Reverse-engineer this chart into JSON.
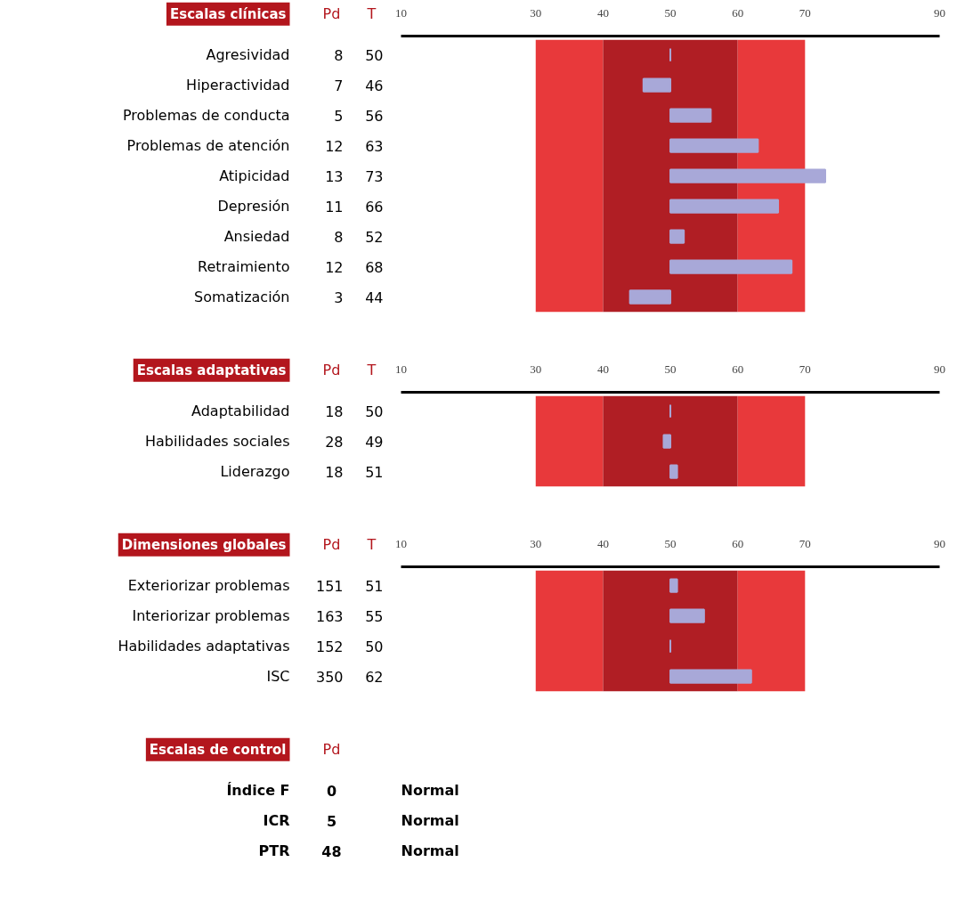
{
  "chart_data": [
    {
      "type": "bar",
      "title": "Escalas clínicas",
      "orientation": "horizontal",
      "categories": [
        "Agresividad",
        "Hiperactividad",
        "Problemas de conducta",
        "Problemas de atención",
        "Atipicidad",
        "Depresión",
        "Ansiedad",
        "Retraimiento",
        "Somatización"
      ],
      "base": [
        50,
        50,
        50,
        50,
        50,
        50,
        50,
        50,
        50
      ],
      "values": [
        0,
        -4,
        6,
        13,
        23,
        16,
        2,
        18,
        -6
      ],
      "color": "#a8a8d8",
      "xlim": [
        10,
        90
      ],
      "xticks": [
        10,
        30,
        40,
        50,
        60,
        70,
        90
      ],
      "bands": [
        {
          "axis": "x",
          "from": 30,
          "to": 40,
          "color": "#e8393b"
        },
        {
          "axis": "x",
          "from": 40,
          "to": 60,
          "color": "#b01e24"
        },
        {
          "axis": "x",
          "from": 60,
          "to": 70,
          "color": "#e8393b"
        }
      ],
      "annotations": [
        "Pd",
        "T",
        "8",
        "50",
        "7",
        "46",
        "5",
        "56",
        "12",
        "63",
        "13",
        "73",
        "11",
        "66",
        "8",
        "52",
        "12",
        "68",
        "3",
        "44"
      ]
    },
    {
      "type": "bar",
      "title": "Escalas adaptativas",
      "orientation": "horizontal",
      "categories": [
        "Adaptabilidad",
        "Habilidades sociales",
        "Liderazgo"
      ],
      "base": [
        50,
        50,
        50
      ],
      "values": [
        0,
        -1,
        1
      ],
      "color": "#a8a8d8",
      "xlim": [
        10,
        90
      ],
      "xticks": [
        10,
        30,
        40,
        50,
        60,
        70,
        90
      ],
      "bands": [
        {
          "axis": "x",
          "from": 30,
          "to": 40,
          "color": "#e8393b"
        },
        {
          "axis": "x",
          "from": 40,
          "to": 60,
          "color": "#b01e24"
        },
        {
          "axis": "x",
          "from": 60,
          "to": 70,
          "color": "#e8393b"
        }
      ],
      "annotations": [
        "Pd",
        "T",
        "18",
        "50",
        "28",
        "49",
        "18",
        "51"
      ]
    },
    {
      "type": "bar",
      "title": "Dimensiones globales",
      "orientation": "horizontal",
      "categories": [
        "Exteriorizar problemas",
        "Interiorizar problemas",
        "Habilidades adaptativas",
        "ISC"
      ],
      "base": [
        50,
        50,
        50,
        50
      ],
      "values": [
        1,
        5,
        0,
        12
      ],
      "color": "#a8a8d8",
      "xlim": [
        10,
        90
      ],
      "xticks": [
        10,
        30,
        40,
        50,
        60,
        70,
        90
      ],
      "bands": [
        {
          "axis": "x",
          "from": 30,
          "to": 40,
          "color": "#e8393b"
        },
        {
          "axis": "x",
          "from": 40,
          "to": 60,
          "color": "#b01e24"
        },
        {
          "axis": "x",
          "from": 60,
          "to": 70,
          "color": "#e8393b"
        }
      ],
      "annotations": [
        "Pd",
        "T",
        "151",
        "51",
        "163",
        "55",
        "152",
        "50",
        "350",
        "62"
      ]
    },
    {
      "type": "other",
      "title": "Escalas de control",
      "categories": [
        "Índice F",
        "ICR",
        "PTR"
      ],
      "annotations": [
        "Pd",
        "0",
        "Normal",
        "5",
        "Normal",
        "48",
        "Normal"
      ]
    }
  ]
}
